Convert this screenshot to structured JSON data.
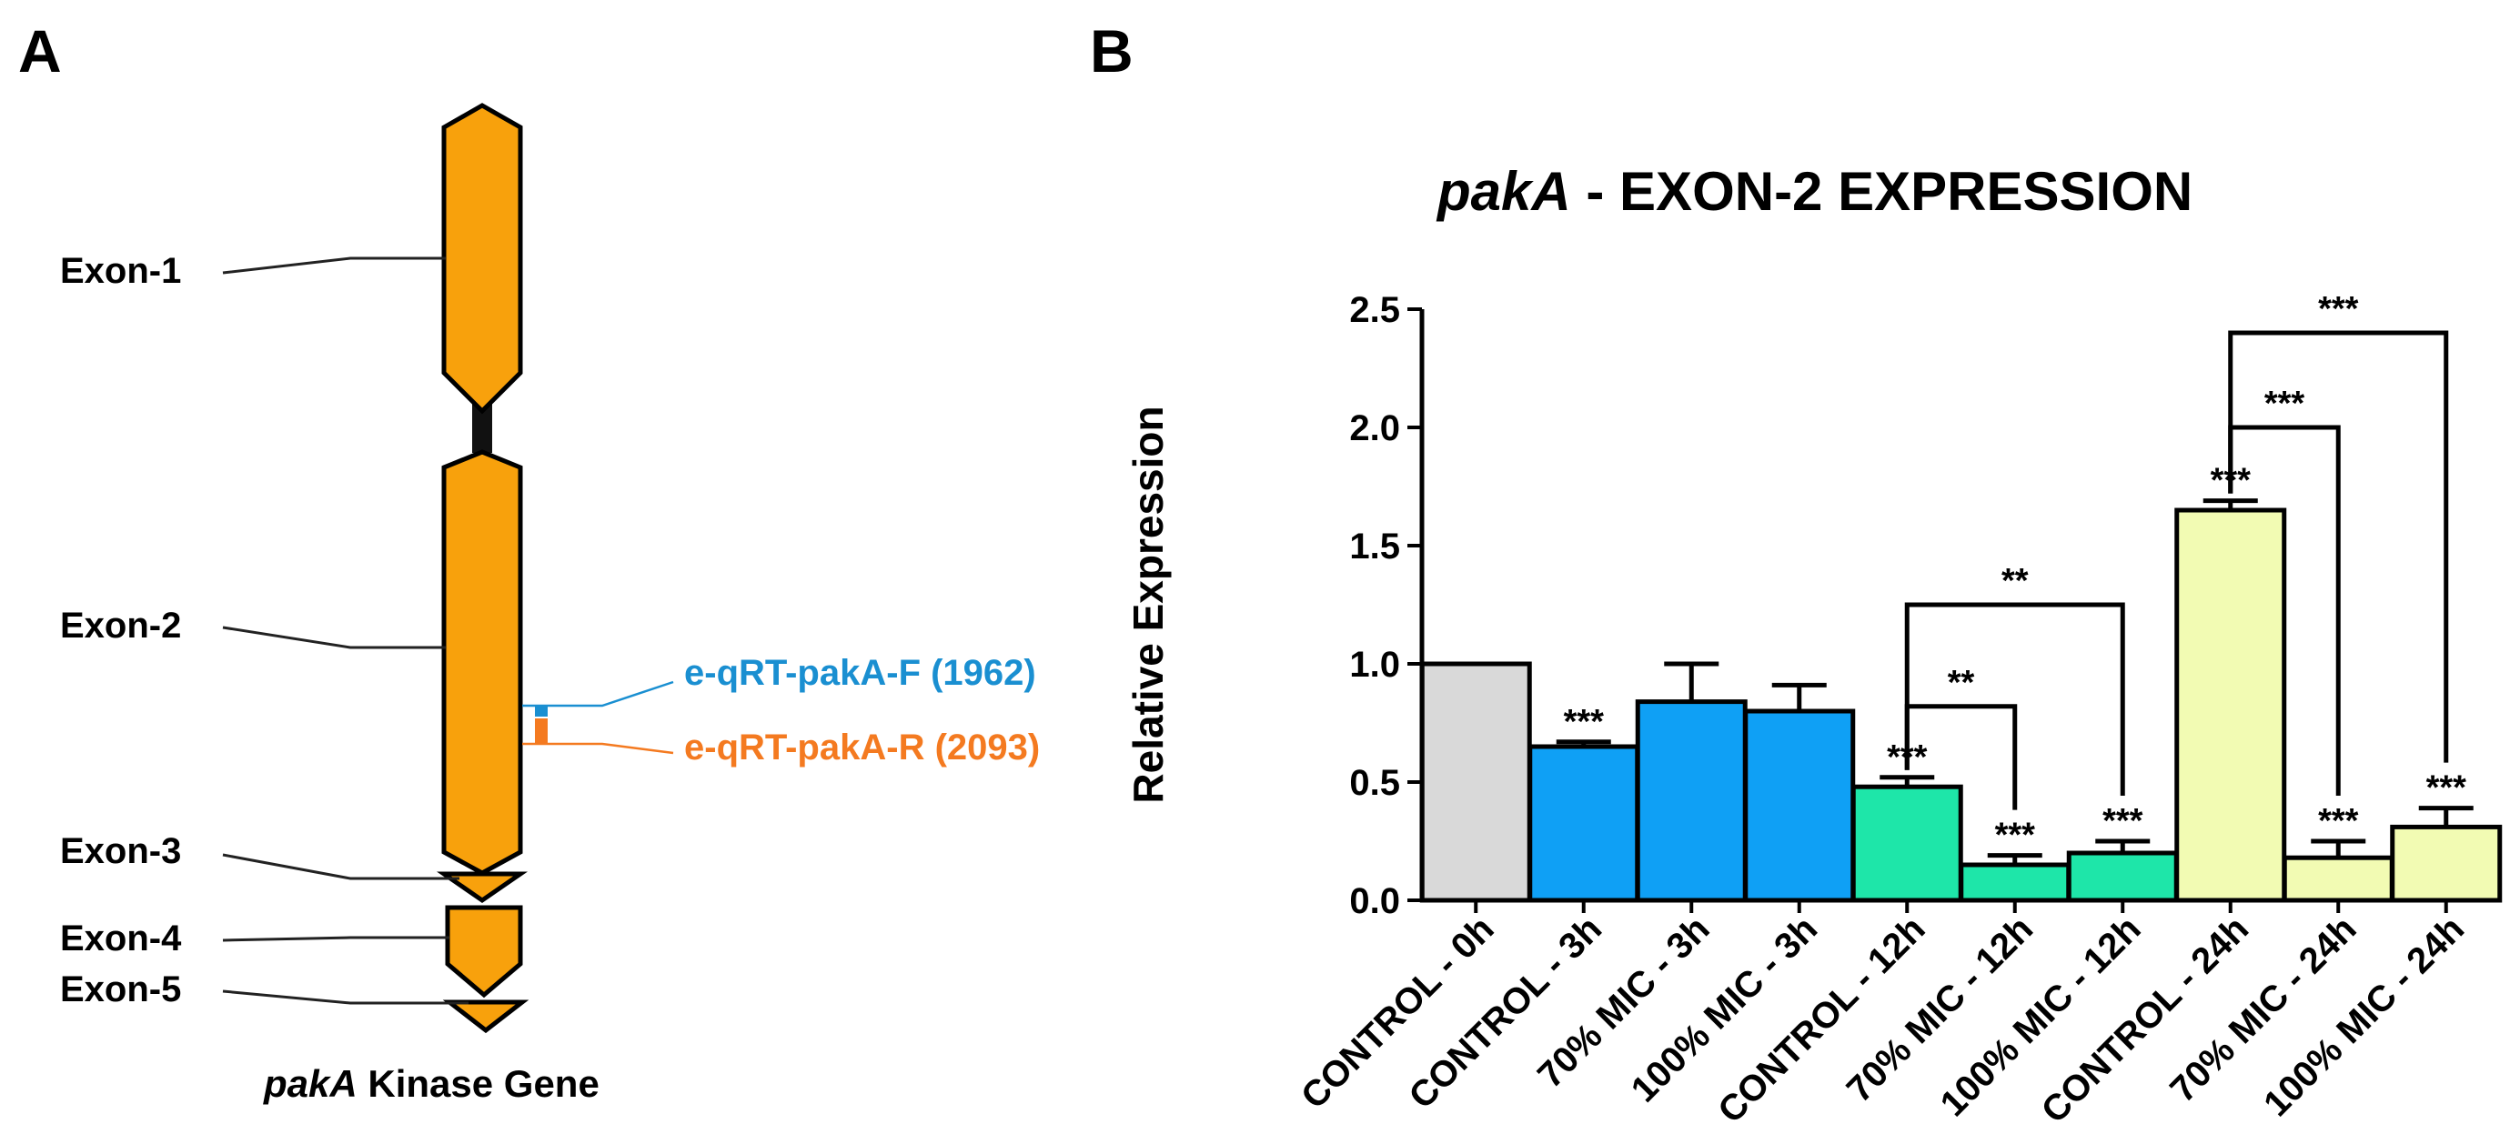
{
  "panel_a": {
    "letter": "A",
    "exon_labels": [
      "Exon-1",
      "Exon-2",
      "Exon-3",
      "Exon-4",
      "Exon-5"
    ],
    "primers": [
      {
        "label": "e-qRT-pakA-F (1962)",
        "color": "#1a8fd1"
      },
      {
        "label": "e-qRT-pakA-R (2093)",
        "color": "#f47a20"
      }
    ],
    "caption_italic": "pakA",
    "caption_rest": " Kinase Gene",
    "exon_color": "#f8a10c",
    "intron_color": "#111111"
  },
  "panel_b": {
    "letter": "B",
    "title_italic": "pakA",
    "title_rest": " - EXON-2 EXPRESSION"
  },
  "chart_data": {
    "type": "bar",
    "title": "pakA - EXON-2 EXPRESSION",
    "xlabel": "",
    "ylabel": "Relative Expression",
    "ylim": [
      0,
      2.5
    ],
    "yticks": [
      "0.0",
      "0.5",
      "1.0",
      "1.5",
      "2.0",
      "2.5"
    ],
    "categories": [
      "CONTROL - 0h",
      "CONTROL - 3h",
      "70% MIC - 3h",
      "100% MIC - 3h",
      "CONTROL - 12h",
      "70% MIC - 12h",
      "100% MIC - 12h",
      "CONTROL - 24h",
      "70% MIC - 24h",
      "100% MIC - 24h"
    ],
    "values": [
      1.0,
      0.65,
      0.84,
      0.8,
      0.48,
      0.15,
      0.2,
      1.65,
      0.18,
      0.31
    ],
    "errors": [
      0.0,
      0.02,
      0.16,
      0.11,
      0.04,
      0.04,
      0.05,
      0.04,
      0.07,
      0.08
    ],
    "colors": [
      "#d9d9d9",
      "#0fa0f5",
      "#0fa0f5",
      "#0fa0f5",
      "#1ee6a9",
      "#1ee6a9",
      "#1ee6a9",
      "#f2fbb3",
      "#f2fbb3",
      "#f2fbb3"
    ],
    "significance": [
      "",
      "***",
      "",
      "",
      "***",
      "***",
      "***",
      "***",
      "***",
      "***"
    ],
    "brackets": [
      {
        "from": 4,
        "to": 5,
        "label": "**",
        "level": 0.82
      },
      {
        "from": 4,
        "to": 6,
        "label": "**",
        "level": 1.25
      },
      {
        "from": 7,
        "to": 8,
        "label": "***",
        "level": 2.0
      },
      {
        "from": 7,
        "to": 9,
        "label": "***",
        "level": 2.4
      }
    ],
    "grid": false,
    "legend": "none"
  }
}
